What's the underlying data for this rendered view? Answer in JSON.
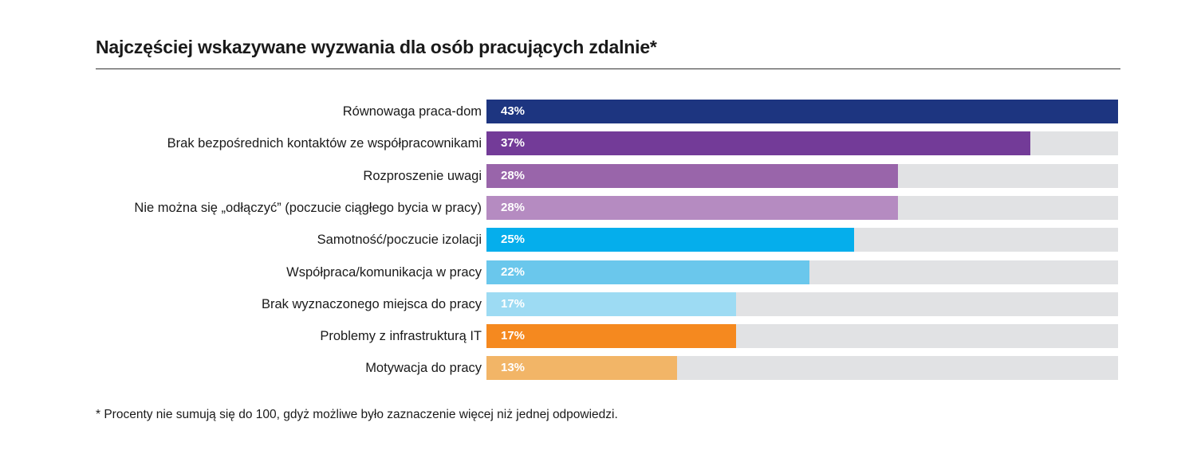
{
  "chart_data": {
    "type": "bar",
    "orientation": "horizontal",
    "title": "Najczęściej wskazywane wyzwania dla osób pracujących zdalnie*",
    "xlim": [
      0,
      43
    ],
    "grid": false,
    "legend": "none",
    "categories": [
      "Równowaga praca-dom",
      "Brak bezpośrednich kontaktów ze współpracownikami",
      "Rozproszenie uwagi",
      "Nie można się „odłączyć” (poczucie ciągłego bycia w pracy)",
      "Samotność/poczucie izolacji",
      "Współpraca/komunikacja w pracy",
      "Brak wyznaczonego miejsca do pracy",
      "Problemy z infrastrukturą IT",
      "Motywacja do pracy"
    ],
    "values": [
      43,
      37,
      28,
      28,
      25,
      22,
      17,
      17,
      13
    ],
    "value_labels": [
      "43%",
      "37%",
      "28%",
      "28%",
      "25%",
      "22%",
      "17%",
      "17%",
      "13%"
    ],
    "colors": [
      "#1d3580",
      "#733b98",
      "#9965aa",
      "#b58bc1",
      "#05aeec",
      "#6ac7ec",
      "#9ddbf3",
      "#f5891f",
      "#f2b567"
    ],
    "track_color": "#e1e2e4",
    "footnote": "* Procenty nie sumują się do 100, gdyż możliwe było zaznaczenie więcej niż jednej odpowiedzi."
  }
}
